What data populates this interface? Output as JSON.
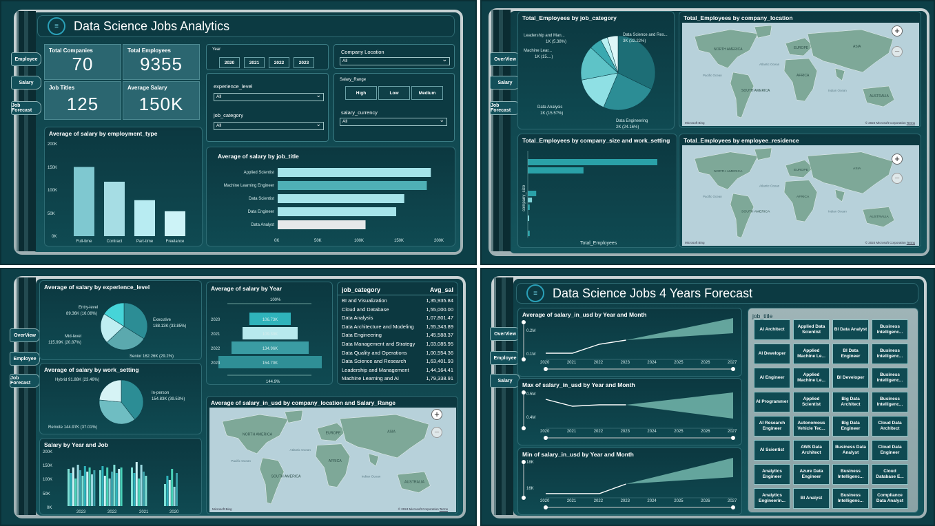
{
  "q1": {
    "title": "Data Science Jobs Analytics",
    "nav": [
      "Employee",
      "Salary",
      "Job Forecast"
    ],
    "kpis": [
      {
        "label": "Total Companies",
        "value": "70"
      },
      {
        "label": "Total Employees",
        "value": "9355"
      },
      {
        "label": "Job Titles",
        "value": "125"
      },
      {
        "label": "Average Salary",
        "value": "150K"
      }
    ],
    "year_slicer": {
      "title": "Year",
      "options": [
        "2020",
        "2021",
        "2022",
        "2023"
      ]
    },
    "company_location": {
      "title": "Company Location",
      "value": "All"
    },
    "experience_level": {
      "title": "experience_level",
      "value": "All"
    },
    "job_category": {
      "title": "job_category",
      "value": "All"
    },
    "salary_range": {
      "title": "Salary_Range",
      "options": [
        "High",
        "Low",
        "Medium"
      ]
    },
    "salary_currency": {
      "title": "salary_currency",
      "value": "All"
    },
    "emp_chart": {
      "title": "Average of salary by employment_type",
      "yticks": [
        "200K",
        "150K",
        "100K",
        "50K",
        "0K"
      ]
    },
    "job_chart": {
      "title": "Average of salary by job_title",
      "xticks": [
        "0K",
        "50K",
        "100K",
        "150K",
        "200K"
      ]
    }
  },
  "q2": {
    "nav": [
      "OverView",
      "Salary",
      "Job Forecast"
    ],
    "pie_title": "Total_Employees by job_category",
    "pie_labels": {
      "lm": "Leadership and Man...",
      "lm_v": "1K (5.38%)",
      "ml": "Machine Lear...",
      "ml_v": "1K (15....)",
      "dsr": "Data Science and Res...",
      "dsr_v": "3K (32.22%)",
      "da": "Data Analysis",
      "da_v": "1K (15.57%)",
      "de": "Data Engineering",
      "de_v": "2K (24.16%)"
    },
    "map1_title": "Total_Employees by company_location",
    "bar_title": "Total_Employees by company_size and work_setting",
    "bar_ylabel": "company_size",
    "bar_xlabel": "Total_Employees",
    "map2_title": "Total_Employees by employee_residence",
    "map_credit": "© 2024 Microsoft Corporation",
    "map_terms": "Terms",
    "bing": "Microsoft Bing",
    "map_labels": [
      "NORTH AMERICA",
      "SOUTH AMERICA",
      "EUROPE",
      "AFRICA",
      "ASIA",
      "AUSTRALIA",
      "Pacific Ocean",
      "Atlantic Ocean",
      "Indian Ocean"
    ]
  },
  "q3": {
    "nav": [
      "OverView",
      "Employee",
      "Job Forecast"
    ],
    "exp_title": "Average of salary by experience_level",
    "exp_labels": {
      "entry": "Entry-level",
      "entry_v": "89.36K (16.08%)",
      "exec": "Executive",
      "exec_v": "188.13K (33.85%)",
      "mid": "Mid-level",
      "mid_v": "115.99K (20.87%)",
      "senior": "Senior 162.26K (29.2%)"
    },
    "ws_title": "Average of salary by work_setting",
    "ws_labels": {
      "hybrid": "Hybrid 91.88K (23.46%)",
      "inperson": "In-person",
      "inperson_v": "154.83K (39.53%)",
      "remote": "Remote 144.97K (37.01%)"
    },
    "funnel_title": "Average of salary by Year",
    "funnel_top": "100%",
    "funnel_bottom": "144.9%",
    "funnel": [
      {
        "year": "2020",
        "value": "106.73K"
      },
      {
        "year": "2021",
        "value": "109.30K"
      },
      {
        "year": "2022",
        "value": "134.96K"
      },
      {
        "year": "2023",
        "value": "154.70K"
      }
    ],
    "table": {
      "h1": "job_category",
      "h2": "Avg_sal",
      "rows": [
        [
          "BI and Visualization",
          "1,35,935.84"
        ],
        [
          "Cloud and Database",
          "1,55,000.00"
        ],
        [
          "Data Analysis",
          "1,07,801.47"
        ],
        [
          "Data Architecture and Modeling",
          "1,55,343.89"
        ],
        [
          "Data Engineering",
          "1,45,588.37"
        ],
        [
          "Data Management and Strategy",
          "1,03,085.95"
        ],
        [
          "Data Quality and Operations",
          "1,00,554.36"
        ],
        [
          "Data Science and Research",
          "1,63,401.93"
        ],
        [
          "Leadership and Management",
          "1,44,164.41"
        ],
        [
          "Machine Learning and AI",
          "1,79,338.91"
        ]
      ]
    },
    "yj_title": "Salary by Year and Job",
    "yj_yticks": [
      "200K",
      "150K",
      "100K",
      "50K",
      "0K"
    ],
    "yj_xticks": [
      "2023",
      "2022",
      "2021",
      "2020"
    ],
    "map_title": "Average of salary_in_usd by company_location and Salary_Range"
  },
  "q4": {
    "title": "Data Science Jobs 4 Years Forecast",
    "nav": [
      "OverView",
      "Employee",
      "Salary"
    ],
    "c1": {
      "title": "Average of salary_in_usd by Year and Month",
      "yticks": [
        "0.2M",
        "0.1M"
      ]
    },
    "c2": {
      "title": "Max of salary_in_usd by Year and Month",
      "yticks": [
        "0.5M",
        "0.4M"
      ]
    },
    "c3": {
      "title": "Min of salary_in_usd by Year and Month",
      "yticks": [
        "18K",
        "16K"
      ]
    },
    "xticks": [
      "2020",
      "2021",
      "2022",
      "2023",
      "2024",
      "2025",
      "2026",
      "2027"
    ],
    "jobs_title": "job_title",
    "jobs": [
      "AI Architect",
      "Applied Data Scientist",
      "BI Data Analyst",
      "Business Intelligenc...",
      "AI Developer",
      "Applied Machine Le...",
      "BI Data Engineer",
      "Business Intelligenc...",
      "AI Engineer",
      "Applied Machine Le...",
      "BI Developer",
      "Business Intelligenc...",
      "AI Programmer",
      "Applied Scientist",
      "Big Data Architect",
      "Business Intelligenc...",
      "AI Research Engineer",
      "Autonomous Vehicle Tec...",
      "Big Data Engineer",
      "Cloud Data Architect",
      "AI Scientist",
      "AWS Data Architect",
      "Business Data Analyst",
      "Cloud Data Engineer",
      "Analytics Engineer",
      "Azure Data Engineer",
      "Business Intelligenc...",
      "Cloud Database E...",
      "Analytics Engineerin...",
      "BI Analyst",
      "Business Intelligenc...",
      "Compliance Data Analyst"
    ]
  },
  "chart_data": [
    {
      "type": "bar",
      "title": "Average of salary by employment_type",
      "categories": [
        "Full-time",
        "Contract",
        "Part-time",
        "Freelance"
      ],
      "values": [
        150000,
        118000,
        78000,
        54000
      ],
      "ylim": [
        0,
        200000
      ]
    },
    {
      "type": "bar",
      "orientation": "horizontal",
      "title": "Average of salary by job_title",
      "categories": [
        "Applied Scientist",
        "Machine Learning Engineer",
        "Data Scientist",
        "Data Engineer",
        "Data Analyst"
      ],
      "values": [
        190000,
        185000,
        157000,
        147000,
        109000
      ],
      "xlim": [
        0,
        200000
      ]
    },
    {
      "type": "bar",
      "orientation": "horizontal",
      "title": "Total_Employees by company_size and work_setting",
      "values": [
        4000,
        1720,
        260,
        130,
        60,
        30,
        60
      ],
      "colors": [
        "#2aa1a8",
        "#2aa1a8",
        "#2aa1a8",
        "#7fd3d8",
        "#2aa1a8",
        "#7fd3d8",
        "#2aa1a8"
      ]
    },
    {
      "type": "bar",
      "title": "Salary by Year and Job",
      "categories": [
        "2023",
        "2022",
        "2021",
        "2020"
      ],
      "series_values": [
        [
          135,
          120,
          140,
          100,
          150,
          130,
          110,
          145,
          125,
          140,
          115,
          130
        ],
        [
          130,
          145,
          110,
          140,
          100,
          125,
          150,
          120,
          135,
          140
        ],
        [
          140,
          120,
          160,
          100,
          150,
          125,
          110
        ],
        [
          80,
          110,
          95,
          135,
          70,
          120
        ]
      ],
      "ylim": [
        0,
        200
      ]
    },
    {
      "type": "line",
      "title": "Average of salary_in_usd by Year and Month",
      "x": [
        2020,
        2021,
        2022,
        2023,
        2024,
        2025,
        2026,
        2027
      ]
    }
  ],
  "colors": {
    "bg": "#0d3f47",
    "accent": "#2aa1a8",
    "light": "#bfeef2"
  }
}
